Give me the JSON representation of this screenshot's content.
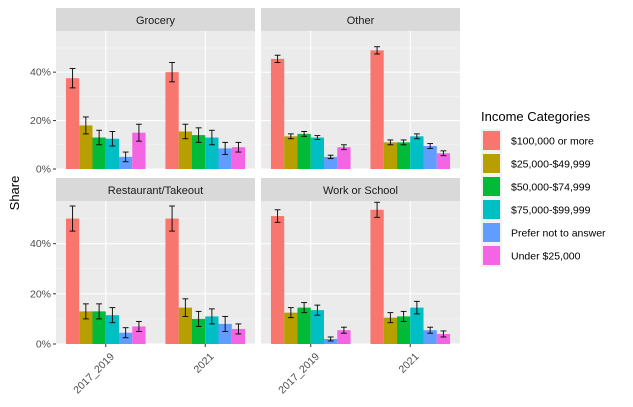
{
  "chart_data": {
    "type": "bar",
    "ylabel": "Share",
    "xlabel": "",
    "ylim": [
      0,
      0.57
    ],
    "y_ticks": [
      0,
      0.2,
      0.4
    ],
    "y_tick_labels": [
      "0%",
      "20%",
      "40%"
    ],
    "categories": [
      "2017_2019",
      "2021"
    ],
    "grid": true,
    "legend": {
      "title": "Income Categories",
      "placement": "right",
      "entries": [
        {
          "label": "$100,000 or more",
          "color": "#F8766D"
        },
        {
          "label": "$25,000-$49,999",
          "color": "#B79F00"
        },
        {
          "label": "$50,000-$74,999",
          "color": "#00BA38"
        },
        {
          "label": "$75,000-$99,999",
          "color": "#00BFC4"
        },
        {
          "label": "Prefer not to answer",
          "color": "#619CFF"
        },
        {
          "label": "Under $25,000",
          "color": "#F564E3"
        }
      ]
    },
    "panels": [
      {
        "title": "Grocery",
        "groups": [
          {
            "category": "2017_2019",
            "values": [
              0.375,
              0.18,
              0.13,
              0.125,
              0.05,
              0.15
            ],
            "errors": [
              0.04,
              0.035,
              0.03,
              0.03,
              0.02,
              0.035
            ]
          },
          {
            "category": "2021",
            "values": [
              0.4,
              0.155,
              0.14,
              0.13,
              0.085,
              0.09
            ],
            "errors": [
              0.04,
              0.03,
              0.03,
              0.03,
              0.025,
              0.02
            ]
          }
        ]
      },
      {
        "title": "Other",
        "groups": [
          {
            "category": "2017_2019",
            "values": [
              0.455,
              0.135,
              0.145,
              0.13,
              0.05,
              0.09
            ],
            "errors": [
              0.015,
              0.01,
              0.01,
              0.008,
              0.007,
              0.01
            ]
          },
          {
            "category": "2021",
            "values": [
              0.49,
              0.11,
              0.11,
              0.135,
              0.095,
              0.065
            ],
            "errors": [
              0.015,
              0.01,
              0.01,
              0.01,
              0.01,
              0.01
            ]
          }
        ]
      },
      {
        "title": "Restaurant/Takeout",
        "groups": [
          {
            "category": "2017_2019",
            "values": [
              0.5,
              0.13,
              0.13,
              0.115,
              0.045,
              0.07
            ],
            "errors": [
              0.05,
              0.03,
              0.03,
              0.03,
              0.02,
              0.02
            ]
          },
          {
            "category": "2021",
            "values": [
              0.5,
              0.145,
              0.1,
              0.11,
              0.08,
              0.06
            ],
            "errors": [
              0.05,
              0.035,
              0.03,
              0.03,
              0.03,
              0.02
            ]
          }
        ]
      },
      {
        "title": "Work or School",
        "groups": [
          {
            "category": "2017_2019",
            "values": [
              0.51,
              0.125,
              0.145,
              0.135,
              0.02,
              0.055
            ],
            "errors": [
              0.025,
              0.02,
              0.02,
              0.02,
              0.008,
              0.012
            ]
          },
          {
            "category": "2021",
            "values": [
              0.535,
              0.105,
              0.11,
              0.145,
              0.055,
              0.04
            ],
            "errors": [
              0.03,
              0.02,
              0.02,
              0.025,
              0.012,
              0.012
            ]
          }
        ]
      }
    ]
  }
}
